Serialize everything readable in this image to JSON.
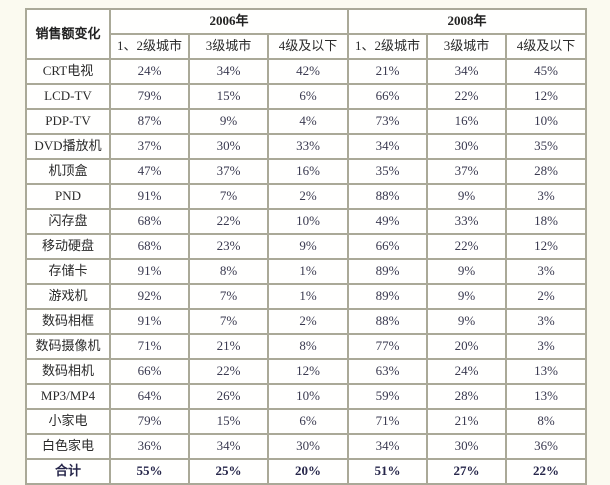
{
  "colors": {
    "page_background": "#fbfaf0",
    "cell_background": "#fffffe",
    "grid_border": "#aaa998",
    "outer_border": "#8d8d7d",
    "label_text": "#2a2a2a",
    "value_text": "#3a3a50"
  },
  "chart_data": {
    "type": "table",
    "corner_label": "销售额变化",
    "year_groups": [
      "2006年",
      "2008年"
    ],
    "tier_headers": [
      "1、2级城市",
      "3级城市",
      "4级及以下"
    ],
    "rows": [
      {
        "label": "CRT电视",
        "y2006": [
          "24%",
          "34%",
          "42%"
        ],
        "y2008": [
          "21%",
          "34%",
          "45%"
        ]
      },
      {
        "label": "LCD-TV",
        "y2006": [
          "79%",
          "15%",
          "6%"
        ],
        "y2008": [
          "66%",
          "22%",
          "12%"
        ]
      },
      {
        "label": "PDP-TV",
        "y2006": [
          "87%",
          "9%",
          "4%"
        ],
        "y2008": [
          "73%",
          "16%",
          "10%"
        ]
      },
      {
        "label": "DVD播放机",
        "y2006": [
          "37%",
          "30%",
          "33%"
        ],
        "y2008": [
          "34%",
          "30%",
          "35%"
        ]
      },
      {
        "label": "机顶盒",
        "y2006": [
          "47%",
          "37%",
          "16%"
        ],
        "y2008": [
          "35%",
          "37%",
          "28%"
        ]
      },
      {
        "label": "PND",
        "y2006": [
          "91%",
          "7%",
          "2%"
        ],
        "y2008": [
          "88%",
          "9%",
          "3%"
        ]
      },
      {
        "label": "闪存盘",
        "y2006": [
          "68%",
          "22%",
          "10%"
        ],
        "y2008": [
          "49%",
          "33%",
          "18%"
        ]
      },
      {
        "label": "移动硬盘",
        "y2006": [
          "68%",
          "23%",
          "9%"
        ],
        "y2008": [
          "66%",
          "22%",
          "12%"
        ]
      },
      {
        "label": "存储卡",
        "y2006": [
          "91%",
          "8%",
          "1%"
        ],
        "y2008": [
          "89%",
          "9%",
          "3%"
        ]
      },
      {
        "label": "游戏机",
        "y2006": [
          "92%",
          "7%",
          "1%"
        ],
        "y2008": [
          "89%",
          "9%",
          "2%"
        ]
      },
      {
        "label": "数码相框",
        "y2006": [
          "91%",
          "7%",
          "2%"
        ],
        "y2008": [
          "88%",
          "9%",
          "3%"
        ]
      },
      {
        "label": "数码摄像机",
        "y2006": [
          "71%",
          "21%",
          "8%"
        ],
        "y2008": [
          "77%",
          "20%",
          "3%"
        ]
      },
      {
        "label": "数码相机",
        "y2006": [
          "66%",
          "22%",
          "12%"
        ],
        "y2008": [
          "63%",
          "24%",
          "13%"
        ]
      },
      {
        "label": "MP3/MP4",
        "y2006": [
          "64%",
          "26%",
          "10%"
        ],
        "y2008": [
          "59%",
          "28%",
          "13%"
        ]
      },
      {
        "label": "小家电",
        "y2006": [
          "79%",
          "15%",
          "6%"
        ],
        "y2008": [
          "71%",
          "21%",
          "8%"
        ]
      },
      {
        "label": "白色家电",
        "y2006": [
          "36%",
          "34%",
          "30%"
        ],
        "y2008": [
          "34%",
          "30%",
          "36%"
        ]
      }
    ],
    "total_row": {
      "label": "合计",
      "y2006": [
        "55%",
        "25%",
        "20%"
      ],
      "y2008": [
        "51%",
        "27%",
        "22%"
      ]
    }
  }
}
